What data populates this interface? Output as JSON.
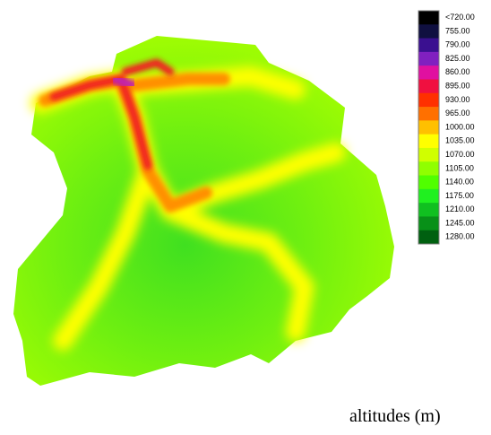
{
  "legend": {
    "title": "altitudes (m)",
    "entries": [
      {
        "label": "<720.00",
        "color": "#000000"
      },
      {
        "label": "755.00",
        "color": "#101040"
      },
      {
        "label": "790.00",
        "color": "#3a1090"
      },
      {
        "label": "825.00",
        "color": "#8020c0"
      },
      {
        "label": "860.00",
        "color": "#e010a0"
      },
      {
        "label": "895.00",
        "color": "#f01040"
      },
      {
        "label": "930.00",
        "color": "#ff3000"
      },
      {
        "label": "965.00",
        "color": "#ff7000"
      },
      {
        "label": "1000.00",
        "color": "#ffc000"
      },
      {
        "label": "1035.00",
        "color": "#ffff00"
      },
      {
        "label": "1070.00",
        "color": "#d0ff00"
      },
      {
        "label": "1105.00",
        "color": "#90ff00"
      },
      {
        "label": "1140.00",
        "color": "#50ff00"
      },
      {
        "label": "1175.00",
        "color": "#20f020"
      },
      {
        "label": "1210.00",
        "color": "#10c020"
      },
      {
        "label": "1245.00",
        "color": "#089018"
      },
      {
        "label": "1280.00",
        "color": "#006010"
      }
    ]
  }
}
